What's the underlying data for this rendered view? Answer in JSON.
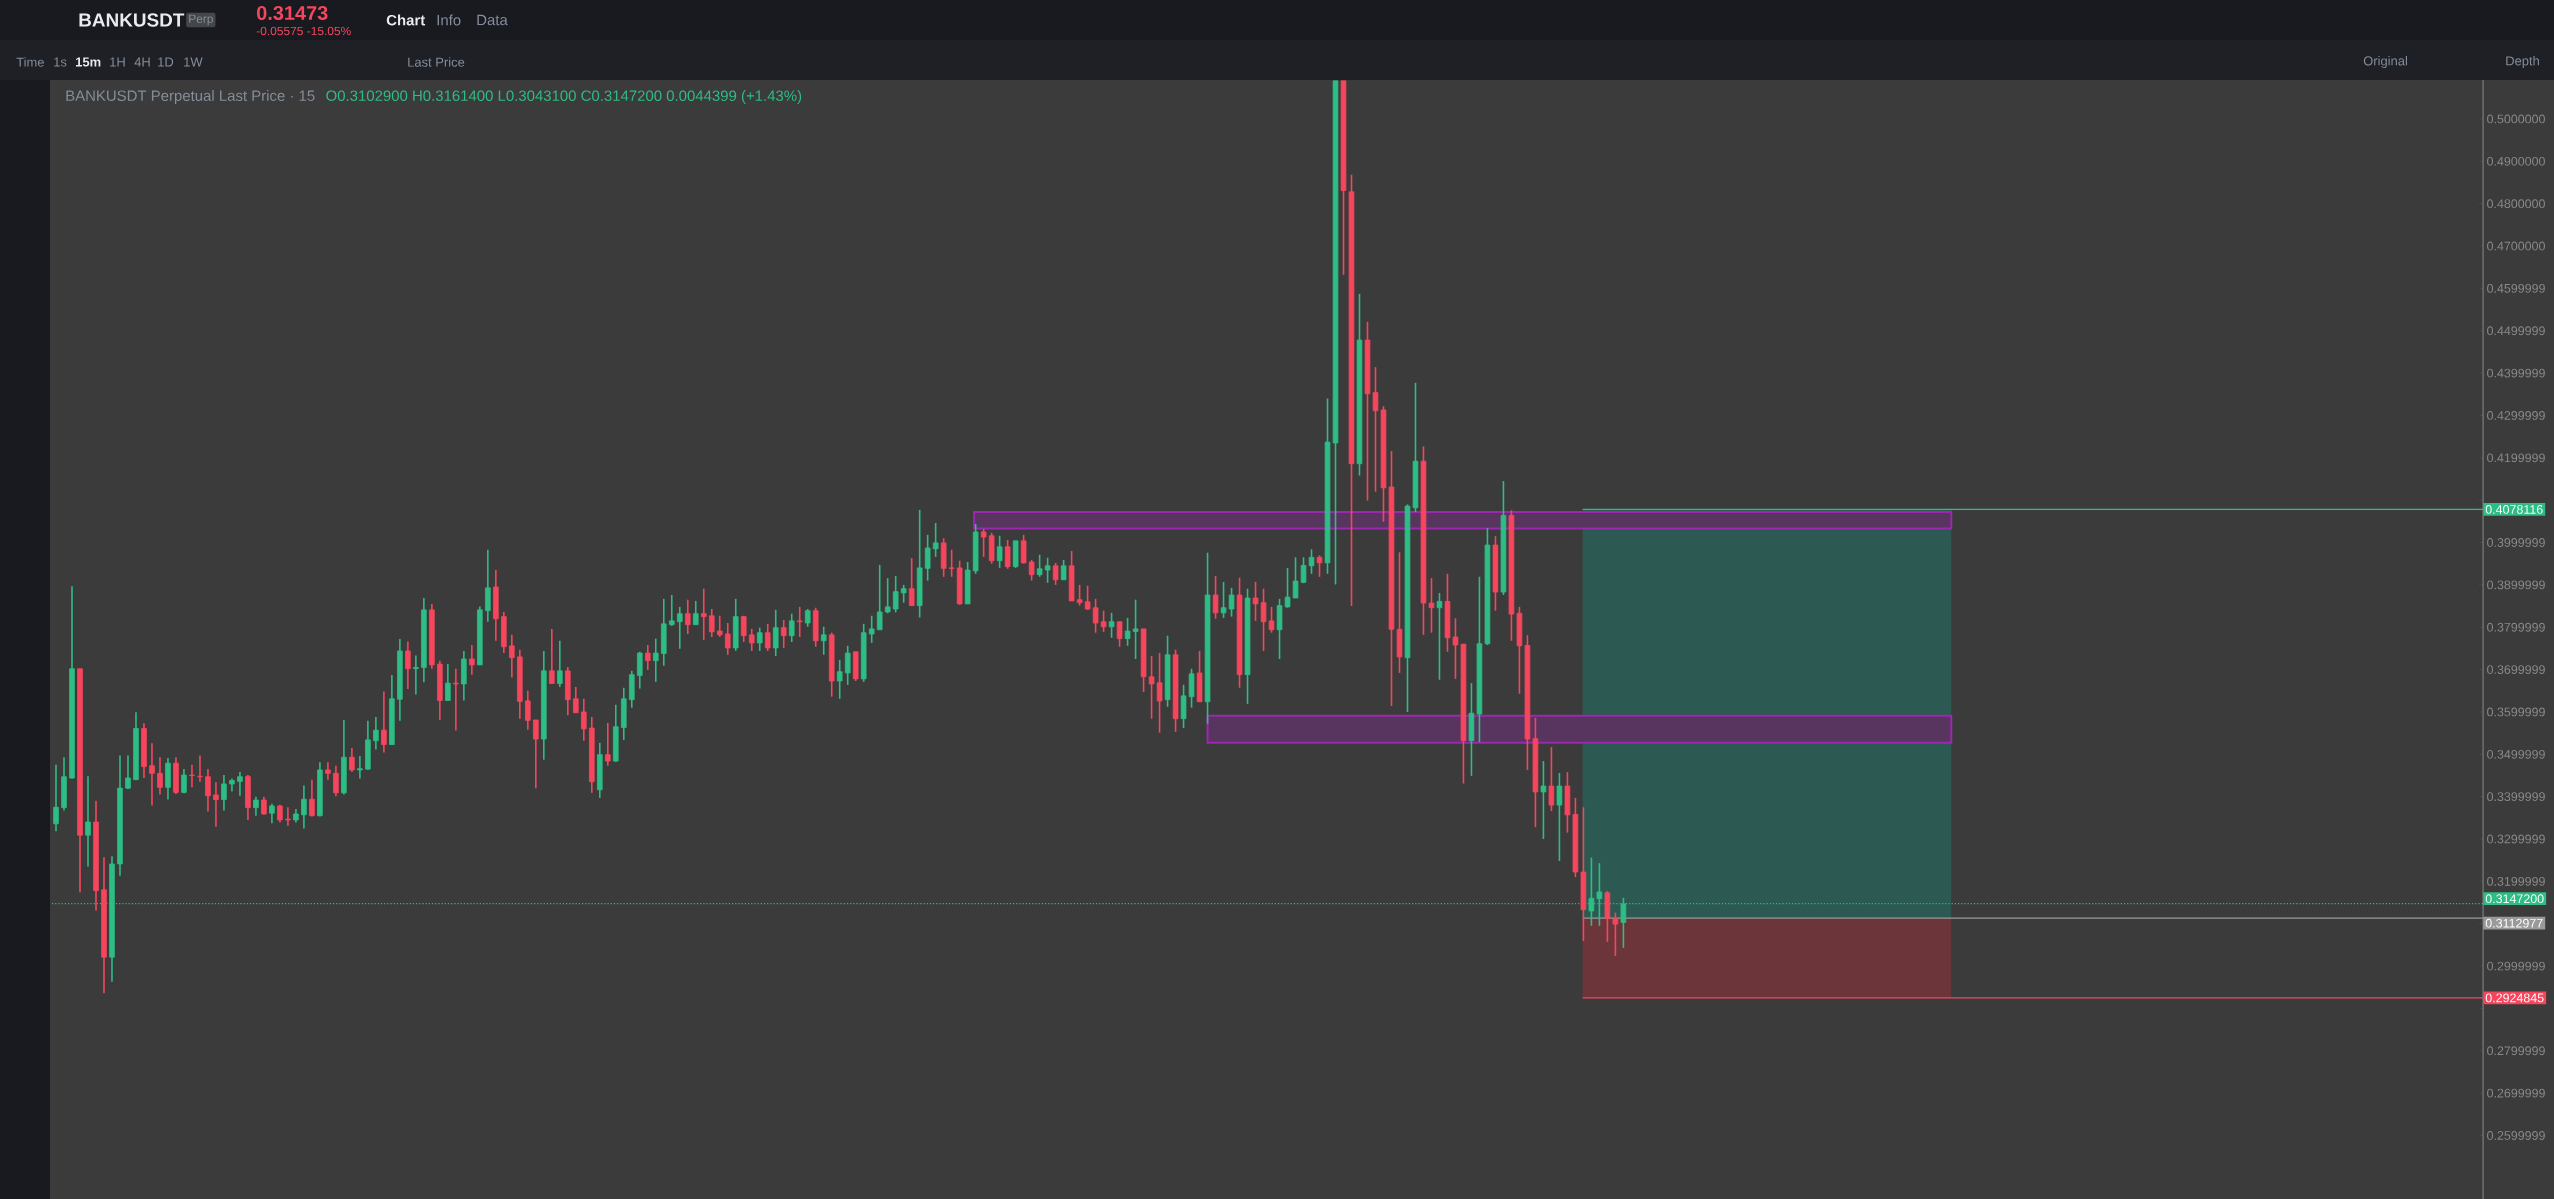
{
  "chart_data": {
    "type": "candlestick",
    "title": "BANKUSDT Perpetual Last Price · 15",
    "subtitle": "O0.3102900 H0.3161400 L0.3043100 C0.3147200 0.0044399 (+1.43%)",
    "annotations": [
      "BANKUSDT",
      "Perp",
      "0.31473",
      "-0.05575 -15.05%",
      "Chart",
      "Info",
      "Data",
      "Time",
      "1s",
      "15m",
      "1H",
      "4H",
      "1D",
      "1W",
      "Last Price",
      "Original",
      "Depth"
    ],
    "colors": [
      "#2ebd85",
      "#2ebd85",
      "#2ebd85",
      "#f6465d",
      "#2ebd85",
      "#f6465d",
      "#f6465d",
      "#2ebd85",
      "#2ebd85",
      "#2ebd85",
      "#2ebd85",
      "#f6465d",
      "#f6465d",
      "#f6465d",
      "#2ebd85",
      "#f6465d",
      "#2ebd85",
      "#f6465d",
      "#f6465d",
      "#f6465d",
      "#f6465d",
      "#2ebd85",
      "#2ebd85",
      "#2ebd85",
      "#f6465d",
      "#2ebd85",
      "#f6465d",
      "#2ebd85",
      "#f6465d",
      "#f6465d",
      "#2ebd85",
      "#2ebd85",
      "#f6465d",
      "#2ebd85",
      "#f6465d",
      "#f6465d",
      "#2ebd85",
      "#f6465d",
      "#2ebd85",
      "#2ebd85",
      "#2ebd85",
      "#f6465d",
      "#2ebd85",
      "#2ebd85",
      "#f6465d",
      "#2ebd85",
      "#2ebd85",
      "#f6465d",
      "#f6465d",
      "#2ebd85",
      "#f6465d",
      "#2ebd85",
      "#f6465d",
      "#2ebd85",
      "#2ebd85",
      "#f6465d",
      "#f6465d",
      "#f6465d",
      "#f6465d",
      "#f6465d",
      "#f6465d",
      "#2ebd85",
      "#f6465d",
      "#2ebd85",
      "#f6465d",
      "#f6465d",
      "#f6465d",
      "#f6465d",
      "#2ebd85",
      "#f6465d",
      "#2ebd85",
      "#2ebd85",
      "#2ebd85",
      "#2ebd85",
      "#f6465d",
      "#2ebd85",
      "#2ebd85",
      "#2ebd85",
      "#2ebd85",
      "#f6465d",
      "#2ebd85",
      "#f6465d",
      "#f6465d",
      "#f6465d",
      "#f6465d",
      "#2ebd85",
      "#f6465d",
      "#f6465d",
      "#2ebd85",
      "#f6465d",
      "#2ebd85",
      "#f6465d",
      "#2ebd85",
      "#f6465d",
      "#2ebd85",
      "#f6465d",
      "#2ebd85",
      "#f6465d",
      "#2ebd85",
      "#2ebd85",
      "#f6465d",
      "#2ebd85",
      "#2ebd85",
      "#2ebd85",
      "#2ebd85",
      "#2ebd85",
      "#2ebd85",
      "#f6465d",
      "#2ebd85",
      "#2ebd85",
      "#2ebd85",
      "#f6465d",
      "#f6465d",
      "#f6465d",
      "#2ebd85",
      "#2ebd85",
      "#f6465d",
      "#f6465d",
      "#2ebd85",
      "#f6465d",
      "#2ebd85",
      "#f6465d",
      "#f6465d",
      "#2ebd85",
      "#2ebd85",
      "#f6465d",
      "#2ebd85",
      "#f6465d",
      "#f6465d",
      "#f6465d",
      "#f6465d",
      "#f6465d",
      "#2ebd85",
      "#f6465d",
      "#2ebd85",
      "#2ebd85",
      "#f6465d",
      "#f6465d",
      "#f6465d",
      "#2ebd85",
      "#f6465d",
      "#2ebd85",
      "#2ebd85",
      "#f6465d",
      "#2ebd85",
      "#f6465d",
      "#2ebd85",
      "#2ebd85",
      "#f6465d",
      "#2ebd85",
      "#f6465d",
      "#f6465d",
      "#f6465d",
      "#2ebd85",
      "#2ebd85",
      "#2ebd85",
      "#2ebd85",
      "#2ebd85",
      "#f6465d",
      "#2ebd85",
      "#2ebd85",
      "#f6465d",
      "#f6465d",
      "#2ebd85",
      "#f6465d",
      "#f6465d",
      "#f6465d",
      "#f6465d",
      "#f6465d",
      "#2ebd85",
      "#2ebd85",
      "#f6465d",
      "#f6465d",
      "#2ebd85",
      "#f6465d",
      "#f6465d",
      "#f6465d",
      "#2ebd85",
      "#2ebd85",
      "#2ebd85",
      "#f6465d",
      "#2ebd85",
      "#f6465d",
      "#f6465d",
      "#f6465d",
      "#f6465d",
      "#2ebd85",
      "#f6465d",
      "#2ebd85",
      "#f6465d",
      "#f6465d",
      "#f6465d",
      "#2ebd85",
      "#2ebd85",
      "#f6465d",
      "#f6465d",
      "#2ebd85",
      null,
      null,
      null,
      null,
      null,
      null,
      null,
      null,
      null,
      null,
      null,
      null,
      null,
      null,
      null,
      null,
      null,
      null,
      null,
      null,
      null,
      null,
      null,
      null,
      null,
      null,
      null,
      null,
      null,
      null,
      null,
      null,
      null,
      null,
      null,
      null,
      null,
      null,
      null,
      null,
      null,
      null,
      null,
      null,
      null,
      null,
      null,
      null,
      null,
      null,
      null,
      null,
      null,
      null,
      null,
      null,
      null,
      null,
      null,
      null,
      null,
      null,
      null,
      null,
      null,
      null,
      null,
      null,
      null,
      null,
      null,
      null,
      null,
      null,
      null,
      null,
      null,
      null,
      null,
      null,
      null,
      null,
      null,
      null,
      null,
      null,
      null,
      null,
      null,
      null,
      null,
      null,
      null,
      null,
      null,
      null,
      null,
      null,
      null,
      null,
      null,
      null,
      null,
      null,
      null,
      null,
      null
    ],
    "categories": [
      null,
      null,
      null,
      null,
      null,
      null,
      null,
      null,
      null,
      null,
      null,
      null,
      null,
      null,
      null,
      null,
      null,
      null,
      null,
      null,
      null,
      null,
      null,
      null,
      null,
      null,
      null,
      null,
      null,
      null,
      null,
      null,
      null,
      null,
      null,
      null,
      null,
      null,
      null,
      null,
      null,
      null,
      null,
      null,
      null,
      null,
      null,
      null,
      null,
      null,
      null,
      null,
      null,
      null,
      null,
      null,
      null,
      null,
      null,
      null,
      null,
      null,
      null,
      null,
      null,
      null,
      null,
      null,
      null,
      null,
      null,
      null,
      null,
      null,
      null,
      null,
      null,
      null,
      null,
      null,
      null,
      null,
      null,
      null,
      null,
      null,
      null,
      null,
      null,
      null,
      null,
      null,
      null,
      null,
      null,
      null,
      null,
      null,
      null,
      null,
      null,
      null,
      null,
      null,
      null,
      null,
      null,
      null,
      null,
      null,
      null,
      null,
      null,
      null,
      null,
      null,
      null,
      null,
      null,
      null,
      null,
      null,
      null,
      null,
      null,
      null,
      null,
      null,
      null,
      null,
      null,
      null,
      null,
      null,
      null,
      null,
      null,
      null,
      null,
      null,
      null,
      null,
      null,
      null,
      null,
      null,
      null,
      null,
      null,
      null,
      null,
      null,
      null,
      null,
      null,
      null,
      null,
      null,
      null,
      null,
      null,
      null,
      null,
      null,
      null,
      null,
      null,
      null,
      null,
      null,
      null,
      null,
      null,
      null,
      null,
      null,
      null,
      null,
      null,
      null,
      null,
      null,
      null,
      null,
      null,
      null,
      null,
      null,
      null,
      null,
      null,
      null,
      null,
      null,
      null,
      null,
      null,
      null,
      null,
      null,
      null,
      null,
      null,
      null,
      null,
      null,
      null,
      null,
      null,
      null,
      null,
      null,
      null,
      null,
      null,
      null,
      null,
      null,
      null,
      null,
      null,
      null,
      null,
      null,
      null,
      null,
      null,
      null,
      null,
      null,
      null,
      null,
      null,
      null,
      null,
      null,
      null,
      null,
      null,
      null,
      null,
      null,
      null,
      null,
      null,
      null,
      null,
      null,
      null,
      null,
      null,
      null,
      null,
      null,
      null,
      null,
      null,
      null,
      null,
      null,
      null,
      null,
      null,
      null,
      null,
      null,
      null,
      null,
      null,
      null,
      null,
      null,
      null,
      null,
      null,
      null,
      null,
      null,
      null,
      null,
      null,
      null,
      null,
      null,
      null,
      null,
      null,
      null,
      null,
      null,
      null,
      null,
      null,
      null,
      null,
      null,
      null,
      null,
      null,
      null,
      null,
      null,
      null,
      null
    ],
    "ohlc": [
      [
        0.3336,
        0.3475,
        0.3318,
        0.3375
      ],
      [
        0.3374,
        0.3493,
        0.3367,
        0.3447
      ],
      [
        0.3444,
        0.3897,
        0.3442,
        0.3702
      ],
      [
        0.3702,
        0.3702,
        0.3174,
        0.3309
      ],
      [
        0.3309,
        0.3448,
        0.3235,
        0.334
      ],
      [
        0.334,
        0.339,
        0.3131,
        0.3178
      ],
      [
        0.318,
        0.3257,
        0.2936,
        0.3021
      ],
      [
        0.3021,
        0.3259,
        0.2963,
        0.3241
      ],
      [
        0.3241,
        0.3497,
        0.3213,
        0.342
      ],
      [
        0.342,
        0.3497,
        0.3418,
        0.3444
      ],
      [
        0.344,
        0.3599,
        0.3439,
        0.3561
      ],
      [
        0.3561,
        0.3573,
        0.3444,
        0.3471
      ],
      [
        0.3473,
        0.3526,
        0.3379,
        0.3455
      ],
      [
        0.3455,
        0.3493,
        0.3405,
        0.3422
      ],
      [
        0.3422,
        0.3491,
        0.3393,
        0.3479
      ],
      [
        0.3479,
        0.3493,
        0.3406,
        0.341
      ],
      [
        0.341,
        0.3465,
        0.3408,
        0.3451
      ],
      [
        0.3451,
        0.3475,
        0.3422,
        0.345
      ],
      [
        0.3448,
        0.3497,
        0.3435,
        0.3447
      ],
      [
        0.3447,
        0.3465,
        0.3365,
        0.3402
      ],
      [
        0.3404,
        0.3434,
        0.3329,
        0.3393
      ],
      [
        0.3393,
        0.3451,
        0.3367,
        0.343
      ],
      [
        0.343,
        0.3443,
        0.3412,
        0.3438
      ],
      [
        0.3436,
        0.3458,
        0.3402,
        0.3447
      ],
      [
        0.3448,
        0.3451,
        0.3345,
        0.3374
      ],
      [
        0.3374,
        0.34,
        0.3355,
        0.3392
      ],
      [
        0.3392,
        0.34,
        0.3357,
        0.3359
      ],
      [
        0.3361,
        0.3383,
        0.3337,
        0.3378
      ],
      [
        0.3378,
        0.3381,
        0.3339,
        0.3345
      ],
      [
        0.3347,
        0.3375,
        0.3331,
        0.3345
      ],
      [
        0.3345,
        0.3371,
        0.3339,
        0.3359
      ],
      [
        0.3357,
        0.3426,
        0.3325,
        0.3394
      ],
      [
        0.3394,
        0.344,
        0.3353,
        0.3355
      ],
      [
        0.3355,
        0.3481,
        0.3353,
        0.3463
      ],
      [
        0.3463,
        0.3481,
        0.344,
        0.3455
      ],
      [
        0.3455,
        0.3473,
        0.3401,
        0.3409
      ],
      [
        0.3409,
        0.3581,
        0.3405,
        0.3493
      ],
      [
        0.3493,
        0.3515,
        0.3458,
        0.3463
      ],
      [
        0.3463,
        0.3496,
        0.3443,
        0.3466
      ],
      [
        0.3465,
        0.3579,
        0.3463,
        0.3534
      ],
      [
        0.3532,
        0.3588,
        0.3511,
        0.3557
      ],
      [
        0.3557,
        0.3648,
        0.3504,
        0.3523
      ],
      [
        0.3523,
        0.3687,
        0.3522,
        0.3631
      ],
      [
        0.363,
        0.3772,
        0.3579,
        0.3744
      ],
      [
        0.3744,
        0.3766,
        0.3654,
        0.3702
      ],
      [
        0.3702,
        0.3733,
        0.3641,
        0.3705
      ],
      [
        0.3705,
        0.3869,
        0.367,
        0.3841
      ],
      [
        0.3841,
        0.3855,
        0.3702,
        0.3711
      ],
      [
        0.3713,
        0.3721,
        0.3581,
        0.3627
      ],
      [
        0.3627,
        0.3713,
        0.3627,
        0.3668
      ],
      [
        0.3668,
        0.3702,
        0.3556,
        0.3666
      ],
      [
        0.3666,
        0.3744,
        0.3627,
        0.3725
      ],
      [
        0.3725,
        0.3758,
        0.3688,
        0.3711
      ],
      [
        0.3711,
        0.3849,
        0.3711,
        0.3841
      ],
      [
        0.3839,
        0.3983,
        0.3813,
        0.3893
      ],
      [
        0.3895,
        0.3935,
        0.3768,
        0.382
      ],
      [
        0.3825,
        0.3836,
        0.3739,
        0.3754
      ],
      [
        0.3756,
        0.3782,
        0.3681,
        0.3728
      ],
      [
        0.373,
        0.3747,
        0.3584,
        0.3625
      ],
      [
        0.3626,
        0.365,
        0.3558,
        0.358
      ],
      [
        0.3581,
        0.3581,
        0.342,
        0.3536
      ],
      [
        0.3536,
        0.3744,
        0.3487,
        0.3697
      ],
      [
        0.3697,
        0.3796,
        0.3667,
        0.3667
      ],
      [
        0.3667,
        0.3768,
        0.3659,
        0.3697
      ],
      [
        0.3697,
        0.3706,
        0.3592,
        0.3629
      ],
      [
        0.3631,
        0.3659,
        0.3598,
        0.3598
      ],
      [
        0.36,
        0.3631,
        0.3532,
        0.356
      ],
      [
        0.3562,
        0.3588,
        0.3409,
        0.3435
      ],
      [
        0.3416,
        0.3527,
        0.3397,
        0.3499
      ],
      [
        0.3499,
        0.3574,
        0.3473,
        0.3484
      ],
      [
        0.3484,
        0.3617,
        0.3482,
        0.3565
      ],
      [
        0.3563,
        0.3657,
        0.3534,
        0.3631
      ],
      [
        0.3629,
        0.3697,
        0.361,
        0.3688
      ],
      [
        0.3686,
        0.3742,
        0.3655,
        0.3739
      ],
      [
        0.3739,
        0.3758,
        0.3699,
        0.3721
      ],
      [
        0.3721,
        0.3773,
        0.3671,
        0.3739
      ],
      [
        0.3738,
        0.3867,
        0.3709,
        0.3808
      ],
      [
        0.3806,
        0.3876,
        0.3803,
        0.3815
      ],
      [
        0.3813,
        0.3848,
        0.3749,
        0.3832
      ],
      [
        0.3832,
        0.3865,
        0.3784,
        0.3806
      ],
      [
        0.3806,
        0.3862,
        0.3806,
        0.3832
      ],
      [
        0.3832,
        0.3891,
        0.377,
        0.3825
      ],
      [
        0.3827,
        0.3843,
        0.3777,
        0.3789
      ],
      [
        0.3791,
        0.3827,
        0.3777,
        0.3782
      ],
      [
        0.3784,
        0.381,
        0.3735,
        0.3751
      ],
      [
        0.3751,
        0.3867,
        0.3744,
        0.3825
      ],
      [
        0.3825,
        0.3827,
        0.3765,
        0.378
      ],
      [
        0.3782,
        0.3796,
        0.3744,
        0.3763
      ],
      [
        0.3763,
        0.3799,
        0.3744,
        0.3787
      ],
      [
        0.3787,
        0.3808,
        0.3744,
        0.3751
      ],
      [
        0.3751,
        0.3841,
        0.3732,
        0.3799
      ],
      [
        0.3799,
        0.3817,
        0.3751,
        0.378
      ],
      [
        0.378,
        0.3832,
        0.3765,
        0.3815
      ],
      [
        0.3815,
        0.3848,
        0.3777,
        0.3813
      ],
      [
        0.381,
        0.3843,
        0.3801,
        0.3839
      ],
      [
        0.3839,
        0.3846,
        0.3754,
        0.3768
      ],
      [
        0.3768,
        0.3801,
        0.3735,
        0.3782
      ],
      [
        0.3782,
        0.3787,
        0.3636,
        0.3673
      ],
      [
        0.3673,
        0.3723,
        0.3631,
        0.3695
      ],
      [
        0.3692,
        0.3756,
        0.3664,
        0.3739
      ],
      [
        0.3742,
        0.3742,
        0.3673,
        0.3678
      ],
      [
        0.3678,
        0.3808,
        0.3671,
        0.3787
      ],
      [
        0.3784,
        0.3827,
        0.3763,
        0.3796
      ],
      [
        0.3794,
        0.3947,
        0.3794,
        0.3836
      ],
      [
        0.3836,
        0.3916,
        0.3833,
        0.3848
      ],
      [
        0.3843,
        0.3921,
        0.3835,
        0.3884
      ],
      [
        0.3881,
        0.39,
        0.3858,
        0.3891
      ],
      [
        0.3891,
        0.3963,
        0.3851,
        0.3851
      ],
      [
        0.3851,
        0.4077,
        0.3823,
        0.394
      ],
      [
        0.3939,
        0.4018,
        0.391,
        0.3987
      ],
      [
        0.3985,
        0.4046,
        0.3966,
        0.3999
      ],
      [
        0.3999,
        0.401,
        0.3919,
        0.3939
      ],
      [
        0.394,
        0.3983,
        0.3919,
        0.3939
      ],
      [
        0.394,
        0.3957,
        0.3853,
        0.3855
      ],
      [
        0.3855,
        0.3954,
        0.3855,
        0.3935
      ],
      [
        0.3933,
        0.4044,
        0.3926,
        0.4025
      ],
      [
        0.4025,
        0.4032,
        0.3966,
        0.4013
      ],
      [
        0.4016,
        0.4023,
        0.395,
        0.3957
      ],
      [
        0.3957,
        0.4016,
        0.394,
        0.399
      ],
      [
        0.399,
        0.4006,
        0.3938,
        0.3943
      ],
      [
        0.3943,
        0.4004,
        0.394,
        0.4004
      ],
      [
        0.4004,
        0.4018,
        0.395,
        0.3952
      ],
      [
        0.3954,
        0.3959,
        0.391,
        0.3924
      ],
      [
        0.3924,
        0.3971,
        0.3919,
        0.3938
      ],
      [
        0.3935,
        0.3964,
        0.3905,
        0.3945
      ],
      [
        0.3945,
        0.3952,
        0.39,
        0.3912
      ],
      [
        0.3912,
        0.3959,
        0.3912,
        0.3945
      ],
      [
        0.3945,
        0.398,
        0.3862,
        0.3862
      ],
      [
        0.3865,
        0.39,
        0.3851,
        0.3858
      ],
      [
        0.386,
        0.3898,
        0.3841,
        0.3843
      ],
      [
        0.3846,
        0.3867,
        0.3787,
        0.381
      ],
      [
        0.3813,
        0.3839,
        0.3789,
        0.3801
      ],
      [
        0.3801,
        0.3834,
        0.3775,
        0.3813
      ],
      [
        0.3813,
        0.3813,
        0.3754,
        0.3773
      ],
      [
        0.3773,
        0.3822,
        0.3756,
        0.3791
      ],
      [
        0.379,
        0.3865,
        0.3725,
        0.3796
      ],
      [
        0.3796,
        0.3796,
        0.3647,
        0.3683
      ],
      [
        0.3683,
        0.3732,
        0.3584,
        0.3666
      ],
      [
        0.3669,
        0.3739,
        0.3551,
        0.3626
      ],
      [
        0.3629,
        0.378,
        0.3612,
        0.3735
      ],
      [
        0.3735,
        0.3747,
        0.3553,
        0.3584
      ],
      [
        0.3584,
        0.3664,
        0.3562,
        0.3638
      ],
      [
        0.3636,
        0.3702,
        0.361,
        0.369
      ],
      [
        0.3692,
        0.3744,
        0.3624,
        0.3624
      ],
      [
        0.3624,
        0.3976,
        0.3572,
        0.3876
      ],
      [
        0.3876,
        0.3921,
        0.382,
        0.3834
      ],
      [
        0.3834,
        0.3907,
        0.3822,
        0.3846
      ],
      [
        0.3843,
        0.3893,
        0.3825,
        0.3876
      ],
      [
        0.3876,
        0.3917,
        0.3657,
        0.3688
      ],
      [
        0.3688,
        0.3891,
        0.3619,
        0.3869
      ],
      [
        0.3869,
        0.3907,
        0.3815,
        0.3855
      ],
      [
        0.3858,
        0.3891,
        0.3744,
        0.3813
      ],
      [
        0.3815,
        0.3848,
        0.3787,
        0.3794
      ],
      [
        0.3794,
        0.3867,
        0.3725,
        0.3851
      ],
      [
        0.3848,
        0.394,
        0.3846,
        0.3871
      ],
      [
        0.3869,
        0.3965,
        0.3869,
        0.3909
      ],
      [
        0.3906,
        0.3965,
        0.3904,
        0.3946
      ],
      [
        0.3945,
        0.3984,
        0.3926,
        0.3965
      ],
      [
        0.3965,
        0.397,
        0.3919,
        0.3952
      ],
      [
        0.3952,
        0.434,
        0.3926,
        0.4237
      ],
      [
        0.4235,
        0.509,
        0.3901,
        0.509
      ],
      [
        0.509,
        0.509,
        0.4632,
        0.4831
      ],
      [
        0.4828,
        0.4868,
        0.385,
        0.4186
      ],
      [
        0.4186,
        0.4587,
        0.4158,
        0.4478
      ],
      [
        0.4478,
        0.4521,
        0.4099,
        0.4351
      ],
      [
        0.4354,
        0.4414,
        0.412,
        0.4311
      ],
      [
        0.4313,
        0.4322,
        0.4049,
        0.4129
      ],
      [
        0.4131,
        0.4216,
        0.3614,
        0.3795
      ],
      [
        0.3795,
        0.3977,
        0.3692,
        0.373
      ],
      [
        0.3728,
        0.409,
        0.36,
        0.4086
      ],
      [
        0.4082,
        0.4377,
        0.4072,
        0.4192
      ],
      [
        0.4192,
        0.4227,
        0.3782,
        0.3857
      ],
      [
        0.3857,
        0.3916,
        0.3787,
        0.3846
      ],
      [
        0.3846,
        0.3881,
        0.3676,
        0.3861
      ],
      [
        0.3861,
        0.3926,
        0.3742,
        0.3775
      ],
      [
        0.3777,
        0.3821,
        0.3678,
        0.3758
      ],
      [
        0.376,
        0.376,
        0.3431,
        0.3532
      ],
      [
        0.3532,
        0.3668,
        0.3449,
        0.3597
      ],
      [
        0.3595,
        0.3919,
        0.3529,
        0.3761
      ],
      [
        0.3761,
        0.4034,
        0.3758,
        0.3994
      ],
      [
        0.3994,
        0.4015,
        0.3839,
        0.3883
      ],
      [
        0.3883,
        0.4145,
        0.3876,
        0.4064
      ],
      [
        0.4064,
        0.4076,
        0.3768,
        0.3831
      ],
      [
        0.3833,
        0.3848,
        0.3643,
        0.3756
      ],
      [
        0.3757,
        0.3781,
        0.3463,
        0.3536
      ],
      [
        0.3537,
        0.3586,
        0.3328,
        0.3411
      ],
      [
        0.3411,
        0.3484,
        0.33,
        0.3425
      ],
      [
        0.3425,
        0.3517,
        0.3366,
        0.338
      ],
      [
        0.338,
        0.3456,
        0.3248,
        0.3425
      ],
      [
        0.3425,
        0.3458,
        0.3315,
        0.3357
      ],
      [
        0.3358,
        0.3397,
        0.321,
        0.3222
      ],
      [
        0.3222,
        0.3375,
        0.3059,
        0.3133
      ],
      [
        0.313,
        0.3256,
        0.3095,
        0.316
      ],
      [
        0.3159,
        0.3243,
        0.3095,
        0.3175
      ],
      [
        0.3173,
        0.3177,
        0.3057,
        0.3112
      ],
      [
        0.3112,
        0.3126,
        0.3024,
        0.3099
      ],
      [
        0.3103,
        0.3161,
        0.3043,
        0.3147
      ],
      null,
      null,
      null,
      null,
      null,
      null,
      null,
      null,
      null,
      null,
      null,
      null,
      null,
      null,
      null,
      null,
      null,
      null,
      null,
      null,
      null,
      null,
      null,
      null,
      null,
      null,
      null,
      null,
      null,
      null,
      null,
      null,
      null,
      null,
      null,
      null,
      null,
      null,
      null,
      null,
      null,
      null,
      null,
      null,
      null,
      null,
      null,
      null,
      null,
      null,
      null,
      null,
      null,
      null,
      null,
      null,
      null,
      null,
      null,
      null,
      null,
      null,
      null,
      null,
      null,
      null,
      null,
      null,
      null,
      null,
      null,
      null,
      null,
      null,
      null,
      null,
      null,
      null,
      null,
      null,
      null,
      null,
      null,
      null,
      null,
      null,
      null,
      null,
      null,
      null,
      null,
      null,
      null,
      null,
      null,
      null,
      null,
      null,
      null,
      null,
      null,
      null,
      null,
      null,
      null,
      null,
      null
    ],
    "ylim": [
      0.245,
      0.5092
    ],
    "yticks": [
      {
        "value": 0.2599999,
        "label": "0.2599999"
      },
      {
        "value": 0.2699999,
        "label": "0.2699999"
      },
      {
        "value": 0.2799999,
        "label": "0.2799999"
      },
      {
        "value": 0.2899999,
        "label": null
      },
      {
        "value": 0.2999999,
        "label": "0.2999999"
      },
      {
        "value": 0.3099999,
        "label": null
      },
      {
        "value": 0.3199999,
        "label": "0.3199999"
      },
      {
        "value": 0.3299999,
        "label": "0.3299999"
      },
      {
        "value": 0.3399999,
        "label": "0.3399999"
      },
      {
        "value": 0.3499999,
        "label": "0.3499999"
      },
      {
        "value": 0.3599999,
        "label": "0.3599999"
      },
      {
        "value": 0.3699999,
        "label": "0.3699999"
      },
      {
        "value": 0.3799999,
        "label": "0.3799999"
      },
      {
        "value": 0.3899999,
        "label": "0.3899999"
      },
      {
        "value": 0.3999999,
        "label": "0.3999999"
      },
      {
        "value": 0.4099999,
        "label": null
      },
      {
        "value": 0.4199999,
        "label": "0.4199999"
      },
      {
        "value": 0.4299999,
        "label": "0.4299999"
      },
      {
        "value": 0.4399999,
        "label": "0.4399999"
      },
      {
        "value": 0.4499999,
        "label": "0.4499999"
      },
      {
        "value": 0.4599999,
        "label": "0.4599999"
      },
      {
        "value": 0.47,
        "label": "0.4700000"
      },
      {
        "value": 0.48,
        "label": "0.4800000"
      },
      {
        "value": 0.49,
        "label": "0.4900000"
      },
      {
        "value": 0.5,
        "label": "0.5000000"
      }
    ],
    "tick_labels": "y",
    "bands": [
      {
        "axis": "y",
        "from": 0.3112977,
        "to": 0.4078116,
        "color": "#2c5a52"
      },
      {
        "axis": "y",
        "from": 0.2924845,
        "to": 0.3112977,
        "color": "#6c3539"
      },
      {
        "axis": "y",
        "from": 0.4033,
        "to": 0.4072,
        "color": "#9c27b0"
      },
      {
        "axis": "y",
        "from": 0.3527,
        "to": 0.3591,
        "color": "#9c27b0"
      }
    ],
    "ref_lines": [
      {
        "axis": "y",
        "value": 0.4078116,
        "label": "0.4078116",
        "color": "#2ebd85",
        "line_style": "solid"
      },
      {
        "axis": "y",
        "value": 0.31472,
        "label": "0.3147200",
        "color": "#2ebd85",
        "line_style": "dotted"
      },
      {
        "axis": "y",
        "value": 0.3112977,
        "label": "0.3112977",
        "color": "#9a9a9a",
        "line_style": "solid"
      },
      {
        "axis": "y",
        "value": 0.2924845,
        "label": "0.2924845",
        "color": "#f6465d",
        "line_style": "solid"
      }
    ]
  }
}
